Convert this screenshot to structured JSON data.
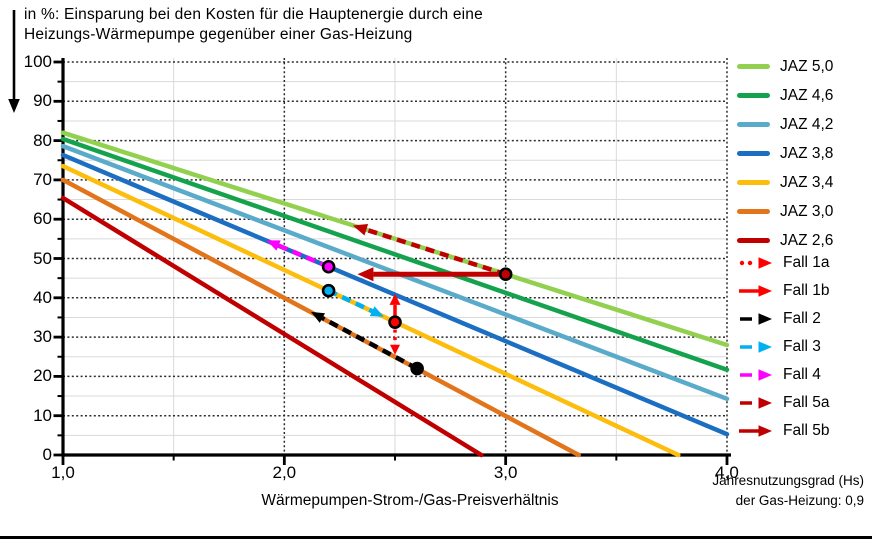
{
  "title": {
    "line1": "in %: Einsparung bei den Kosten für die Hauptenergie durch eine",
    "line2": "Heizungs-Wärmepumpe gegenüber einer Gas-Heizung"
  },
  "note": {
    "line1": "Jahresnutzungsgrad (Hs)",
    "line2": "der Gas-Heizung: 0,9"
  },
  "chart_data": {
    "type": "line",
    "title": "in %: Einsparung bei den Kosten für die Hauptenergie durch eine Heizungs-Wärmepumpe gegenüber einer Gas-Heizung",
    "xlabel": "Wärmepumpen-Strom-/Gas-Preisverhältnis",
    "ylabel": "Einsparung in %",
    "xlim": [
      1.0,
      4.0
    ],
    "ylim": [
      0,
      100
    ],
    "gas_efficiency_hs": 0.9,
    "x_ticks": {
      "major": [
        1.0,
        2.0,
        3.0,
        4.0
      ],
      "labels": [
        "1,0",
        "2,0",
        "3,0",
        "4,0"
      ],
      "minor": [
        1.5,
        2.5,
        3.5
      ]
    },
    "y_ticks": {
      "major": [
        0,
        10,
        20,
        30,
        40,
        50,
        60,
        70,
        80,
        90,
        100
      ],
      "labels": [
        "0",
        "10",
        "20",
        "30",
        "40",
        "50",
        "60",
        "70",
        "80",
        "90",
        "100"
      ],
      "minor": [
        5,
        15,
        25,
        35,
        45,
        55,
        65,
        75,
        85,
        95
      ]
    },
    "grid": {
      "x_major": [
        2.0,
        3.0,
        4.0
      ],
      "x_minor": [
        1.5,
        2.5,
        3.5
      ],
      "y_major": [
        10,
        20,
        30,
        40,
        50,
        60,
        70,
        80,
        90,
        100
      ],
      "y_minor": [
        5,
        15,
        25,
        35,
        45,
        55,
        65,
        75,
        85,
        95
      ]
    },
    "series": [
      {
        "label": "JAZ 5,0",
        "jaz": 5.0,
        "color": "#92d050",
        "points": [
          [
            1.0,
            82.0
          ],
          [
            4.0,
            28.0
          ]
        ]
      },
      {
        "label": "JAZ 4,6",
        "jaz": 4.6,
        "color": "#14a24d",
        "points": [
          [
            1.0,
            80.4
          ],
          [
            4.0,
            21.7
          ]
        ]
      },
      {
        "label": "JAZ 4,2",
        "jaz": 4.2,
        "color": "#5aaac9",
        "points": [
          [
            1.0,
            78.6
          ],
          [
            4.0,
            14.3
          ]
        ]
      },
      {
        "label": "JAZ 3,8",
        "jaz": 3.8,
        "color": "#1b6ec2",
        "points": [
          [
            1.0,
            76.3
          ],
          [
            4.0,
            5.3
          ]
        ]
      },
      {
        "label": "JAZ 3,4",
        "jaz": 3.4,
        "color": "#fcbd0d",
        "points": [
          [
            1.0,
            73.5
          ],
          [
            3.78,
            0.0
          ]
        ]
      },
      {
        "label": "JAZ 3,0",
        "jaz": 3.0,
        "color": "#e2751b",
        "points": [
          [
            1.0,
            70.0
          ],
          [
            3.33,
            0.0
          ]
        ]
      },
      {
        "label": "JAZ 2,6",
        "jaz": 2.6,
        "color": "#c00000",
        "points": [
          [
            1.0,
            65.4
          ],
          [
            2.89,
            0.0
          ]
        ]
      }
    ],
    "markers": [
      {
        "name": "point-fall-5-start",
        "x": 3.0,
        "y": 46.0,
        "color": "#c00000"
      },
      {
        "name": "point-fall-4-start",
        "x": 2.2,
        "y": 47.9,
        "color": "#ff00ff"
      },
      {
        "name": "point-fall-3-start",
        "x": 2.2,
        "y": 41.8,
        "color": "#00b0f0"
      },
      {
        "name": "point-fall-1-start",
        "x": 2.5,
        "y": 33.8,
        "color": "#ff0000"
      },
      {
        "name": "point-fall-2-start",
        "x": 2.6,
        "y": 22.0,
        "color": "#000000"
      }
    ],
    "arrows": [
      {
        "label": "Fall 1a",
        "color": "#ff0000",
        "pattern": "dotted",
        "from": [
          2.5,
          33.8
        ],
        "to": [
          2.5,
          25.5
        ],
        "width": 3.5,
        "head": [
          10,
          10
        ]
      },
      {
        "label": "Fall 1b",
        "color": "#ff0000",
        "pattern": "solid",
        "from": [
          2.5,
          33.8
        ],
        "to": [
          2.5,
          41.0
        ],
        "width": 3.5,
        "head": [
          11,
          11
        ]
      },
      {
        "label": "Fall 2",
        "color": "#000000",
        "pattern": "dashed",
        "from": [
          2.6,
          22.0
        ],
        "to": [
          2.12,
          36.4
        ],
        "width": 4.5,
        "head": [
          13,
          11
        ]
      },
      {
        "label": "Fall 3",
        "color": "#00b0f0",
        "pattern": "dashed",
        "from": [
          2.2,
          41.8
        ],
        "to": [
          2.45,
          35.2
        ],
        "width": 4.5,
        "head": [
          13,
          11
        ]
      },
      {
        "label": "Fall 4",
        "color": "#ff00ff",
        "pattern": "dashed",
        "from": [
          2.2,
          47.9
        ],
        "to": [
          1.92,
          54.6
        ],
        "width": 4.5,
        "head": [
          13,
          11
        ]
      },
      {
        "label": "Fall 5a",
        "color": "#c00000",
        "pattern": "dashed",
        "from": [
          3.0,
          46.0
        ],
        "to": [
          2.31,
          58.4
        ],
        "width": 4.5,
        "head": [
          14,
          12
        ]
      },
      {
        "label": "Fall 5b",
        "color": "#c00000",
        "pattern": "solid",
        "from": [
          3.0,
          46.0
        ],
        "to": [
          2.33,
          46.0
        ],
        "width": 5.0,
        "head": [
          16,
          14
        ]
      }
    ]
  },
  "legend": {
    "lines": [
      {
        "label": "JAZ 5,0",
        "color": "#92d050"
      },
      {
        "label": "JAZ 4,6",
        "color": "#14a24d"
      },
      {
        "label": "JAZ 4,2",
        "color": "#5aaac9"
      },
      {
        "label": "JAZ 3,8",
        "color": "#1b6ec2"
      },
      {
        "label": "JAZ 3,4",
        "color": "#fcbd0d"
      },
      {
        "label": "JAZ 3,0",
        "color": "#e2751b"
      },
      {
        "label": "JAZ 2,6",
        "color": "#c00000"
      }
    ],
    "arrows": [
      {
        "label": "Fall 1a",
        "color": "#ff0000",
        "pattern": "dotted"
      },
      {
        "label": "Fall 1b",
        "color": "#ff0000",
        "pattern": "solid"
      },
      {
        "label": "Fall 2",
        "color": "#000000",
        "pattern": "dashed"
      },
      {
        "label": "Fall 3",
        "color": "#00b0f0",
        "pattern": "dashed"
      },
      {
        "label": "Fall 4",
        "color": "#ff00ff",
        "pattern": "dashed"
      },
      {
        "label": "Fall 5a",
        "color": "#c00000",
        "pattern": "dashed"
      },
      {
        "label": "Fall 5b",
        "color": "#c00000",
        "pattern": "solid"
      }
    ]
  }
}
